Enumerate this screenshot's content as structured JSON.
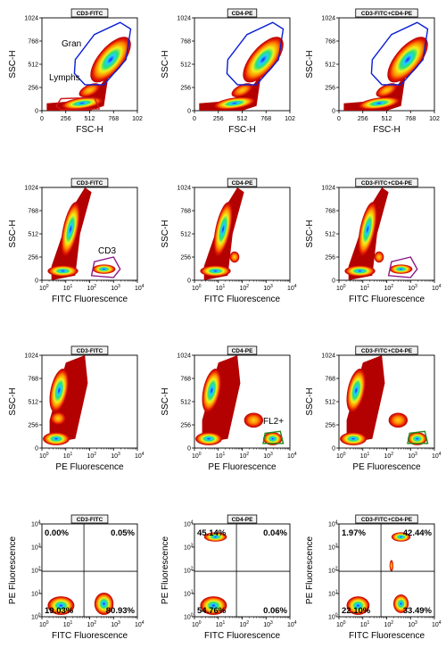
{
  "figure": {
    "background": "#ffffff",
    "colors": {
      "gate_gran": "#0a1fd6",
      "gate_lymph": "#d11a1a",
      "gate_cd3": "#8a1a8a",
      "gate_fl2": "#1a8a1a",
      "density_low": "#b30000",
      "density_high": "#1a1aff"
    }
  },
  "chart_data": [
    {
      "type": "heatmap",
      "kind": "scatter",
      "title": "CD3-FITC",
      "xlabel": "FSC-H",
      "ylabel": "SSC-H",
      "xticks": [
        "0",
        "256",
        "512",
        "768",
        "102"
      ],
      "yticks": [
        "0",
        "256",
        "512",
        "768",
        "1024"
      ],
      "xlim": [
        0,
        1024
      ],
      "ylim": [
        0,
        1024
      ],
      "gates": [
        "Gran",
        "Lymphs"
      ]
    },
    {
      "type": "heatmap",
      "kind": "scatter",
      "title": "CD4-PE",
      "xlabel": "FSC-H",
      "ylabel": "SSC-H",
      "xticks": [
        "0",
        "256",
        "512",
        "768",
        "102"
      ],
      "yticks": [
        "0",
        "256",
        "512",
        "768",
        "1024"
      ],
      "xlim": [
        0,
        1024
      ],
      "ylim": [
        0,
        1024
      ],
      "gates": []
    },
    {
      "type": "heatmap",
      "kind": "scatter",
      "title": "CD3-FITC+CD4-PE",
      "xlabel": "FSC-H",
      "ylabel": "SSC-H",
      "xticks": [
        "0",
        "256",
        "512",
        "768",
        "102"
      ],
      "yticks": [
        "0",
        "256",
        "512",
        "768",
        "1024"
      ],
      "xlim": [
        0,
        1024
      ],
      "ylim": [
        0,
        1024
      ],
      "gates": []
    },
    {
      "type": "heatmap",
      "kind": "scatter",
      "title": "CD3-FITC",
      "xlabel": "FITC Fluorescence",
      "ylabel": "SSC-H",
      "xscale": "log",
      "yticks": [
        "0",
        "256",
        "512",
        "768",
        "1024"
      ],
      "ylim": [
        0,
        1024
      ],
      "gates": [
        "CD3"
      ]
    },
    {
      "type": "heatmap",
      "kind": "scatter",
      "title": "CD4-PE",
      "xlabel": "FITC Fluorescence",
      "ylabel": "SSC-H",
      "xscale": "log",
      "yticks": [
        "0",
        "256",
        "512",
        "768",
        "1024"
      ],
      "ylim": [
        0,
        1024
      ],
      "gates": []
    },
    {
      "type": "heatmap",
      "kind": "scatter",
      "title": "CD3-FITC+CD4-PE",
      "xlabel": "FITC Fluorescence",
      "ylabel": "SSC-H",
      "xscale": "log",
      "yticks": [
        "0",
        "256",
        "512",
        "768",
        "1024"
      ],
      "ylim": [
        0,
        1024
      ],
      "gates": []
    },
    {
      "type": "heatmap",
      "kind": "scatter",
      "title": "CD3-FITC",
      "xlabel": "PE Fluorescence",
      "ylabel": "SSC-H",
      "xscale": "log",
      "yticks": [
        "0",
        "256",
        "512",
        "768",
        "1024"
      ],
      "ylim": [
        0,
        1024
      ],
      "gates": []
    },
    {
      "type": "heatmap",
      "kind": "scatter",
      "title": "CD4-PE",
      "xlabel": "PE Fluorescence",
      "ylabel": "SSC-H",
      "xscale": "log",
      "yticks": [
        "0",
        "256",
        "512",
        "768",
        "1024"
      ],
      "ylim": [
        0,
        1024
      ],
      "gates": [
        "FL2+"
      ]
    },
    {
      "type": "heatmap",
      "kind": "scatter",
      "title": "CD3-FITC+CD4-PE",
      "xlabel": "PE Fluorescence",
      "ylabel": "SSC-H",
      "xscale": "log",
      "yticks": [
        "0",
        "256",
        "512",
        "768",
        "1024"
      ],
      "ylim": [
        0,
        1024
      ],
      "gates": []
    },
    {
      "type": "heatmap",
      "kind": "quadrant",
      "title": "CD3-FITC",
      "xlabel": "FITC Fluorescence",
      "ylabel": "PE Fluorescence",
      "xscale": "log",
      "yscale": "log",
      "quadrants": {
        "ul": "0.00%",
        "ur": "0.05%",
        "ll": "19.03%",
        "lr": "80.93%"
      }
    },
    {
      "type": "heatmap",
      "kind": "quadrant",
      "title": "CD4-PE",
      "xlabel": "FITC Fluorescence",
      "ylabel": "PE Fluorescence",
      "xscale": "log",
      "yscale": "log",
      "quadrants": {
        "ul": "45.14%",
        "ur": "0.04%",
        "ll": "54.76%",
        "lr": "0.06%"
      }
    },
    {
      "type": "heatmap",
      "kind": "quadrant",
      "title": "CD3-FITC+CD4-PE",
      "xlabel": "FITC Fluorescence",
      "ylabel": "PE Fluorescence",
      "xscale": "log",
      "yscale": "log",
      "quadrants": {
        "ul": "1.97%",
        "ur": "42.44%",
        "ll": "22.10%",
        "lr": "33.49%"
      }
    }
  ]
}
